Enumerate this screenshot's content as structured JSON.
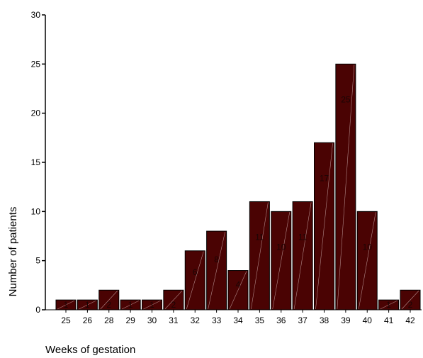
{
  "chart_data": {
    "type": "bar",
    "categories": [
      "25",
      "26",
      "28",
      "29",
      "30",
      "31",
      "32",
      "33",
      "34",
      "35",
      "36",
      "37",
      "38",
      "39",
      "40",
      "41",
      "42"
    ],
    "values": [
      1,
      1,
      2,
      1,
      1,
      2,
      6,
      8,
      4,
      11,
      10,
      11,
      17,
      25,
      10,
      1,
      2
    ],
    "xlabel": "Weeks of gestation",
    "ylabel": "Number of patients",
    "ylim": [
      0,
      30
    ],
    "yticks": [
      0,
      5,
      10,
      15,
      20,
      25,
      30
    ],
    "grid": false,
    "colors": {
      "bar_fill": "#4a0303",
      "bar_stroke": "#000000",
      "hatch": "#c8a8a8"
    }
  }
}
